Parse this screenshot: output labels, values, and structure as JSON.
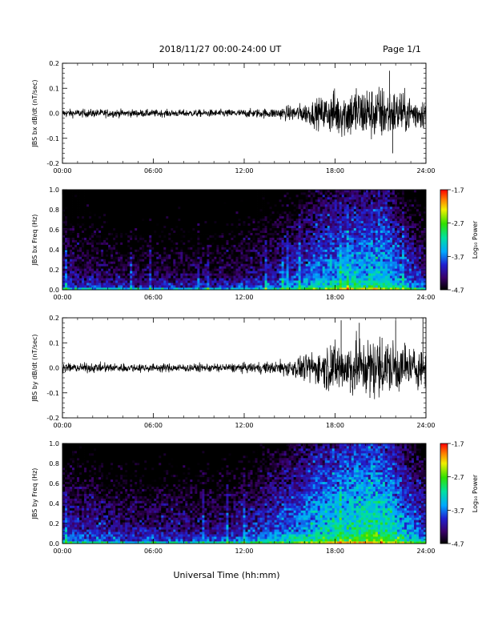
{
  "header": {
    "title": "2018/11/27  00:00-24:00 UT",
    "page_label": "Page 1/1"
  },
  "footer": {
    "xlabel": "Universal Time (hh:mm)"
  },
  "x_ticks": [
    "00:00",
    "06:00",
    "12:00",
    "18:00",
    "24:00"
  ],
  "x_range_hours": [
    0,
    24
  ],
  "chart_data": [
    {
      "type": "line",
      "ylabel": "JBS bx dB/dt (nT/sec)",
      "ylim": [
        -0.2,
        0.2
      ],
      "y_ticks": [
        "-0.2",
        "-0.1",
        "0.0",
        "0.1",
        "0.2"
      ],
      "x": [
        0,
        3,
        6,
        9,
        12,
        14,
        15,
        16,
        17,
        18,
        19,
        20,
        21,
        22,
        23,
        24
      ],
      "amplitude": [
        0.008,
        0.008,
        0.007,
        0.007,
        0.008,
        0.01,
        0.015,
        0.02,
        0.03,
        0.045,
        0.05,
        0.05,
        0.055,
        0.045,
        0.035,
        0.03
      ],
      "spikes": [
        {
          "x": 17.9,
          "y": 0.09
        },
        {
          "x": 18.2,
          "y": -0.06
        },
        {
          "x": 19.4,
          "y": 0.1
        },
        {
          "x": 20.1,
          "y": 0.09
        },
        {
          "x": 20.6,
          "y": -0.08
        },
        {
          "x": 21.6,
          "y": 0.17
        },
        {
          "x": 21.8,
          "y": -0.16
        },
        {
          "x": 22.3,
          "y": 0.08
        },
        {
          "x": 23.3,
          "y": -0.05
        }
      ]
    },
    {
      "type": "heatmap",
      "ylabel": "JBS bx Freq (Hz)",
      "ylim": [
        0.0,
        1.0
      ],
      "y_ticks": [
        "0.0",
        "0.2",
        "0.4",
        "0.6",
        "0.8",
        "1.0"
      ],
      "colorbar": {
        "label": "Log₁₀ Power",
        "ticks": [
          "-1.7",
          "-2.7",
          "-3.7",
          "-4.7"
        ],
        "range": [
          -4.7,
          -1.7
        ]
      },
      "activity_x": [
        0,
        2,
        4,
        6,
        8,
        10,
        12,
        14,
        16,
        17,
        18,
        19,
        20,
        21,
        22,
        23,
        24
      ],
      "activity_power": [
        -4.1,
        -4.2,
        -4.3,
        -4.3,
        -4.3,
        -4.3,
        -4.2,
        -4.0,
        -3.7,
        -3.5,
        -3.4,
        -3.3,
        -3.3,
        -3.2,
        -3.5,
        -3.8,
        -4.0
      ]
    },
    {
      "type": "line",
      "ylabel": "JBS by dB/dt (nT/sec)",
      "ylim": [
        -0.2,
        0.2
      ],
      "y_ticks": [
        "-0.2",
        "-0.1",
        "0.0",
        "0.1",
        "0.2"
      ],
      "x": [
        0,
        3,
        6,
        9,
        12,
        14,
        15,
        16,
        17,
        18,
        19,
        20,
        21,
        22,
        23,
        24
      ],
      "amplitude": [
        0.009,
        0.009,
        0.008,
        0.008,
        0.009,
        0.012,
        0.018,
        0.025,
        0.035,
        0.05,
        0.055,
        0.055,
        0.06,
        0.05,
        0.04,
        0.035
      ],
      "spikes": [
        {
          "x": 17.7,
          "y": 0.09
        },
        {
          "x": 18.4,
          "y": 0.19
        },
        {
          "x": 19.0,
          "y": -0.1
        },
        {
          "x": 19.6,
          "y": 0.18
        },
        {
          "x": 20.3,
          "y": -0.12
        },
        {
          "x": 21.1,
          "y": 0.12
        },
        {
          "x": 22.0,
          "y": 0.19
        },
        {
          "x": 22.6,
          "y": 0.1
        },
        {
          "x": 23.8,
          "y": 0.2
        }
      ]
    },
    {
      "type": "heatmap",
      "ylabel": "JBS by Freq (Hz)",
      "ylim": [
        0.0,
        1.0
      ],
      "y_ticks": [
        "0.0",
        "0.2",
        "0.4",
        "0.6",
        "0.8",
        "1.0"
      ],
      "colorbar": {
        "label": "Log₁₀ Power",
        "ticks": [
          "-1.7",
          "-2.7",
          "-3.7",
          "-4.7"
        ],
        "range": [
          -4.7,
          -1.7
        ]
      },
      "activity_x": [
        0,
        2,
        4,
        6,
        8,
        10,
        12,
        14,
        16,
        17,
        18,
        19,
        20,
        21,
        22,
        23,
        24
      ],
      "activity_power": [
        -3.9,
        -4.0,
        -4.1,
        -4.1,
        -4.1,
        -4.1,
        -4.0,
        -3.7,
        -3.4,
        -3.2,
        -3.1,
        -3.0,
        -2.9,
        -2.9,
        -3.2,
        -3.5,
        -3.8
      ]
    }
  ]
}
